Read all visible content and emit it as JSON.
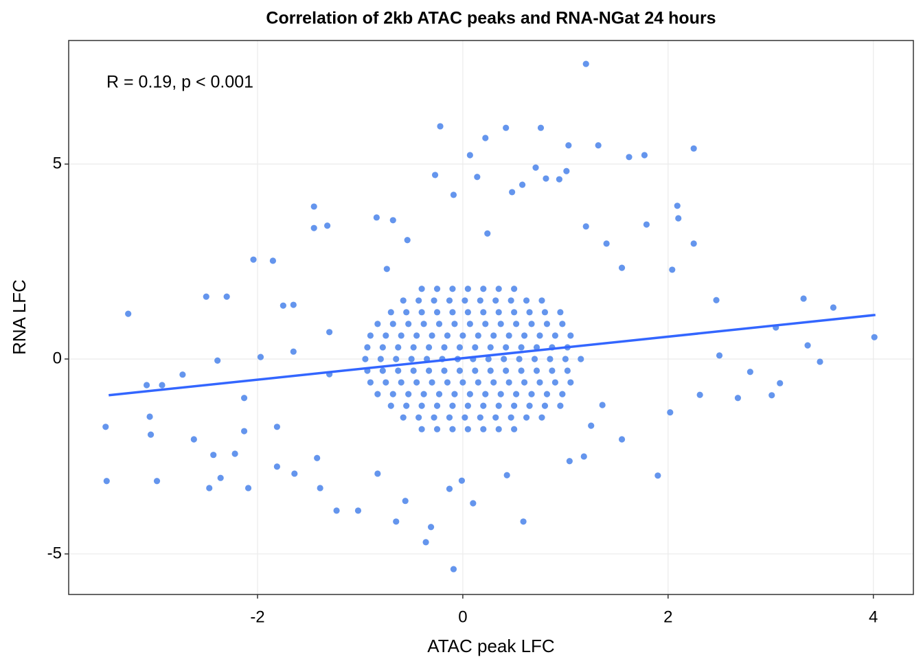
{
  "chart_data": {
    "type": "scatter",
    "title": "Correlation of 2kb ATAC peaks and RNA-NGat 24 hours",
    "xlabel": "ATAC peak LFC",
    "ylabel": "RNA LFC",
    "annotation": "R = 0.19, p < 0.001",
    "color": "#6495ed",
    "xlim": [
      -3.84,
      4.39
    ],
    "ylim": [
      -6.04,
      8.17
    ],
    "xticks": [
      -2,
      0,
      2,
      4
    ],
    "yticks": [
      -5,
      0,
      5
    ],
    "grid": true,
    "x": [
      1.2,
      -0.22,
      0.42,
      0.76,
      0.22,
      1.03,
      1.32,
      2.25,
      1.62,
      1.77,
      0.07,
      1.01,
      -0.27,
      -3.26,
      -3.48,
      -3.47,
      -2.98,
      4.01,
      3.61,
      3.32,
      3.48,
      3.36,
      -0.09,
      -0.36,
      -0.31,
      -0.65,
      0.59,
      1.9,
      1.04,
      -1.45,
      -1.45,
      -1.32,
      -0.84,
      -0.68,
      -2.04,
      -1.85,
      -2.5,
      -2.3,
      2.09,
      2.1,
      1.79,
      2.25,
      2.04,
      2.47,
      3.05,
      3.09,
      3.01,
      2.68,
      2.02,
      -2.47,
      -2.36,
      -2.09,
      -2.43,
      -2.62,
      -2.22,
      -3.05,
      -3.04,
      -3.08,
      -2.93,
      -2.73,
      -1.23,
      -1.02,
      -1.39,
      0.24,
      0.48,
      0.58,
      0.71,
      0.81,
      0.94,
      -0.09,
      0.14,
      -0.54,
      -0.74,
      1.2,
      1.4,
      1.55,
      -1.65,
      -1.75,
      -1.3,
      2.5,
      2.8,
      2.31,
      1.36,
      1.25,
      1.55,
      1.18,
      0.1,
      -0.13,
      -0.01,
      0.43,
      -0.56,
      -0.83,
      -1.42,
      -1.64,
      -1.81,
      -2.13,
      -1.81,
      -2.13,
      -2.39,
      -1.97,
      -1.65,
      -1.3,
      -0.4,
      -0.25,
      -0.1,
      0.05,
      0.2,
      0.35,
      0.5,
      -0.58,
      -0.43,
      -0.28,
      -0.13,
      0.02,
      0.17,
      0.32,
      0.47,
      0.62,
      0.77,
      -0.7,
      -0.55,
      -0.4,
      -0.25,
      -0.1,
      0.05,
      0.2,
      0.35,
      0.5,
      0.65,
      0.8,
      0.95,
      -0.83,
      -0.68,
      -0.53,
      -0.38,
      -0.23,
      -0.08,
      0.07,
      0.22,
      0.37,
      0.52,
      0.67,
      0.82,
      0.97,
      -0.9,
      -0.75,
      -0.6,
      -0.45,
      -0.3,
      -0.15,
      0,
      0.15,
      0.3,
      0.45,
      0.6,
      0.75,
      0.9,
      1.05,
      -0.93,
      -0.78,
      -0.63,
      -0.48,
      -0.33,
      -0.18,
      -0.03,
      0.12,
      0.27,
      0.42,
      0.57,
      0.72,
      0.87,
      1.02,
      -0.95,
      -0.8,
      -0.65,
      -0.5,
      -0.35,
      -0.2,
      -0.05,
      0.1,
      0.25,
      0.4,
      0.55,
      0.7,
      0.85,
      1.0,
      1.15,
      -0.93,
      -0.78,
      -0.63,
      -0.48,
      -0.33,
      -0.18,
      -0.03,
      0.12,
      0.27,
      0.42,
      0.57,
      0.72,
      0.87,
      1.02,
      -0.9,
      -0.75,
      -0.6,
      -0.45,
      -0.3,
      -0.15,
      0,
      0.15,
      0.3,
      0.45,
      0.6,
      0.75,
      0.9,
      1.05,
      -0.83,
      -0.68,
      -0.53,
      -0.38,
      -0.23,
      -0.08,
      0.07,
      0.22,
      0.37,
      0.52,
      0.67,
      0.82,
      0.97,
      -0.7,
      -0.55,
      -0.4,
      -0.25,
      -0.1,
      0.05,
      0.2,
      0.35,
      0.5,
      0.65,
      0.8,
      0.95,
      -0.58,
      -0.43,
      -0.28,
      -0.13,
      0.02,
      0.17,
      0.32,
      0.47,
      0.62,
      0.77,
      -0.4,
      -0.25,
      -0.1,
      0.05,
      0.2,
      0.35,
      0.5
    ],
    "values": [
      7.57,
      5.97,
      5.93,
      5.93,
      5.67,
      5.48,
      5.48,
      5.4,
      5.18,
      5.23,
      5.23,
      4.82,
      4.72,
      1.16,
      -1.74,
      -3.13,
      -3.13,
      0.56,
      1.32,
      1.55,
      -0.07,
      0.35,
      -5.39,
      -4.7,
      -4.31,
      -4.17,
      -4.17,
      -2.99,
      -2.62,
      3.91,
      3.36,
      3.42,
      3.63,
      3.56,
      2.55,
      2.52,
      1.6,
      1.6,
      3.93,
      3.61,
      3.45,
      2.96,
      2.29,
      1.51,
      0.81,
      -0.62,
      -0.93,
      -1.0,
      -1.37,
      -3.31,
      -3.05,
      -3.31,
      -2.46,
      -2.06,
      -2.43,
      -1.48,
      -1.94,
      -0.67,
      -0.67,
      -0.4,
      -3.89,
      -3.89,
      -3.31,
      3.22,
      4.28,
      4.47,
      4.91,
      4.63,
      4.61,
      4.21,
      4.67,
      3.05,
      2.31,
      3.4,
      2.96,
      2.34,
      1.39,
      1.37,
      0.69,
      0.09,
      -0.33,
      -0.92,
      -1.18,
      -1.71,
      -2.06,
      -2.5,
      -3.7,
      -3.33,
      -3.12,
      -2.98,
      -3.64,
      -2.94,
      -2.54,
      -2.94,
      -2.76,
      -1.85,
      -1.74,
      -1.0,
      -0.04,
      0.05,
      0.19,
      -0.39,
      -1.8,
      -1.8,
      -1.8,
      -1.8,
      -1.8,
      -1.8,
      -1.8,
      -1.5,
      -1.5,
      -1.5,
      -1.5,
      -1.5,
      -1.5,
      -1.5,
      -1.5,
      -1.5,
      -1.5,
      -1.2,
      -1.2,
      -1.2,
      -1.2,
      -1.2,
      -1.2,
      -1.2,
      -1.2,
      -1.2,
      -1.2,
      -1.2,
      -1.2,
      -0.9,
      -0.9,
      -0.9,
      -0.9,
      -0.9,
      -0.9,
      -0.9,
      -0.9,
      -0.9,
      -0.9,
      -0.9,
      -0.9,
      -0.9,
      -0.6,
      -0.6,
      -0.6,
      -0.6,
      -0.6,
      -0.6,
      -0.6,
      -0.6,
      -0.6,
      -0.6,
      -0.6,
      -0.6,
      -0.6,
      -0.6,
      -0.3,
      -0.3,
      -0.3,
      -0.3,
      -0.3,
      -0.3,
      -0.3,
      -0.3,
      -0.3,
      -0.3,
      -0.3,
      -0.3,
      -0.3,
      -0.3,
      0,
      0,
      0,
      0,
      0,
      0,
      0,
      0,
      0,
      0,
      0,
      0,
      0,
      0,
      0,
      0.3,
      0.3,
      0.3,
      0.3,
      0.3,
      0.3,
      0.3,
      0.3,
      0.3,
      0.3,
      0.3,
      0.3,
      0.3,
      0.3,
      0.6,
      0.6,
      0.6,
      0.6,
      0.6,
      0.6,
      0.6,
      0.6,
      0.6,
      0.6,
      0.6,
      0.6,
      0.6,
      0.6,
      0.9,
      0.9,
      0.9,
      0.9,
      0.9,
      0.9,
      0.9,
      0.9,
      0.9,
      0.9,
      0.9,
      0.9,
      0.9,
      1.2,
      1.2,
      1.2,
      1.2,
      1.2,
      1.2,
      1.2,
      1.2,
      1.2,
      1.2,
      1.2,
      1.2,
      1.5,
      1.5,
      1.5,
      1.5,
      1.5,
      1.5,
      1.5,
      1.5,
      1.5,
      1.5,
      1.8,
      1.8,
      1.8,
      1.8,
      1.8,
      1.8,
      1.8
    ],
    "fit": {
      "color": "#3366ff",
      "x": [
        -3.45,
        4.02
      ],
      "values": [
        -0.93,
        1.13
      ]
    }
  }
}
